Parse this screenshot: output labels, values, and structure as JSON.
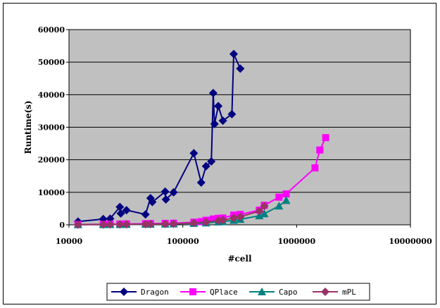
{
  "chart_data": {
    "type": "line",
    "x_scale": "log",
    "xlabel": "#cell",
    "ylabel": "Runtime(s)",
    "xlim": [
      10000,
      10000000
    ],
    "ylim": [
      0,
      60000
    ],
    "x_ticks": [
      "10000",
      "100000",
      "1000000",
      "10000000"
    ],
    "y_ticks": [
      "0",
      "10000",
      "20000",
      "30000",
      "40000",
      "50000",
      "60000"
    ],
    "grid": "horizontal",
    "legend_position": "bottom",
    "plot_background": "#c0c0c0",
    "series": [
      {
        "name": "Dragon",
        "color": "#000080",
        "marker": "diamond",
        "points": [
          [
            12000,
            1000
          ],
          [
            20000,
            1800
          ],
          [
            23000,
            1900
          ],
          [
            28000,
            5500
          ],
          [
            28500,
            3500
          ],
          [
            32000,
            4500
          ],
          [
            47000,
            3200
          ],
          [
            52000,
            8200
          ],
          [
            54000,
            7000
          ],
          [
            70000,
            10200
          ],
          [
            71000,
            7800
          ],
          [
            83000,
            10000
          ],
          [
            125000,
            22000
          ],
          [
            145000,
            13000
          ],
          [
            160000,
            18000
          ],
          [
            178000,
            19500
          ],
          [
            185000,
            40500
          ],
          [
            190000,
            31000
          ],
          [
            205000,
            36500
          ],
          [
            225000,
            32000
          ],
          [
            270000,
            34000
          ],
          [
            280000,
            52500
          ],
          [
            320000,
            48000
          ]
        ]
      },
      {
        "name": "QPlace",
        "color": "#ff00ff",
        "marker": "square",
        "points": [
          [
            12000,
            100
          ],
          [
            20000,
            150
          ],
          [
            23000,
            200
          ],
          [
            28000,
            250
          ],
          [
            32000,
            280
          ],
          [
            47000,
            350
          ],
          [
            52000,
            400
          ],
          [
            70000,
            450
          ],
          [
            83000,
            500
          ],
          [
            125000,
            800
          ],
          [
            145000,
            1000
          ],
          [
            160000,
            1400
          ],
          [
            185000,
            1800
          ],
          [
            205000,
            2000
          ],
          [
            225000,
            2100
          ],
          [
            280000,
            3000
          ],
          [
            320000,
            3200
          ],
          [
            470000,
            4500
          ],
          [
            520000,
            6000
          ],
          [
            700000,
            8500
          ],
          [
            810000,
            9500
          ],
          [
            1450000,
            17500
          ],
          [
            1600000,
            23000
          ],
          [
            1800000,
            26800
          ]
        ]
      },
      {
        "name": "Capo",
        "color": "#008080",
        "marker": "triangle",
        "points": [
          [
            12000,
            50
          ],
          [
            20000,
            80
          ],
          [
            23000,
            100
          ],
          [
            28000,
            120
          ],
          [
            32000,
            140
          ],
          [
            47000,
            180
          ],
          [
            52000,
            200
          ],
          [
            70000,
            250
          ],
          [
            83000,
            300
          ],
          [
            125000,
            450
          ],
          [
            160000,
            600
          ],
          [
            205000,
            900
          ],
          [
            225000,
            1000
          ],
          [
            280000,
            1400
          ],
          [
            320000,
            1700
          ],
          [
            470000,
            2800
          ],
          [
            520000,
            3400
          ],
          [
            700000,
            5800
          ],
          [
            810000,
            7500
          ]
        ]
      },
      {
        "name": "mPL",
        "color": "#993366",
        "marker": "diamond",
        "points": [
          [
            12000,
            60
          ],
          [
            20000,
            90
          ],
          [
            23000,
            110
          ],
          [
            28000,
            140
          ],
          [
            32000,
            160
          ],
          [
            47000,
            200
          ],
          [
            52000,
            230
          ],
          [
            70000,
            280
          ],
          [
            83000,
            330
          ],
          [
            125000,
            600
          ],
          [
            160000,
            900
          ],
          [
            205000,
            1300
          ],
          [
            225000,
            1500
          ],
          [
            280000,
            2100
          ],
          [
            320000,
            2500
          ],
          [
            470000,
            4200
          ],
          [
            520000,
            5800
          ]
        ]
      }
    ]
  }
}
